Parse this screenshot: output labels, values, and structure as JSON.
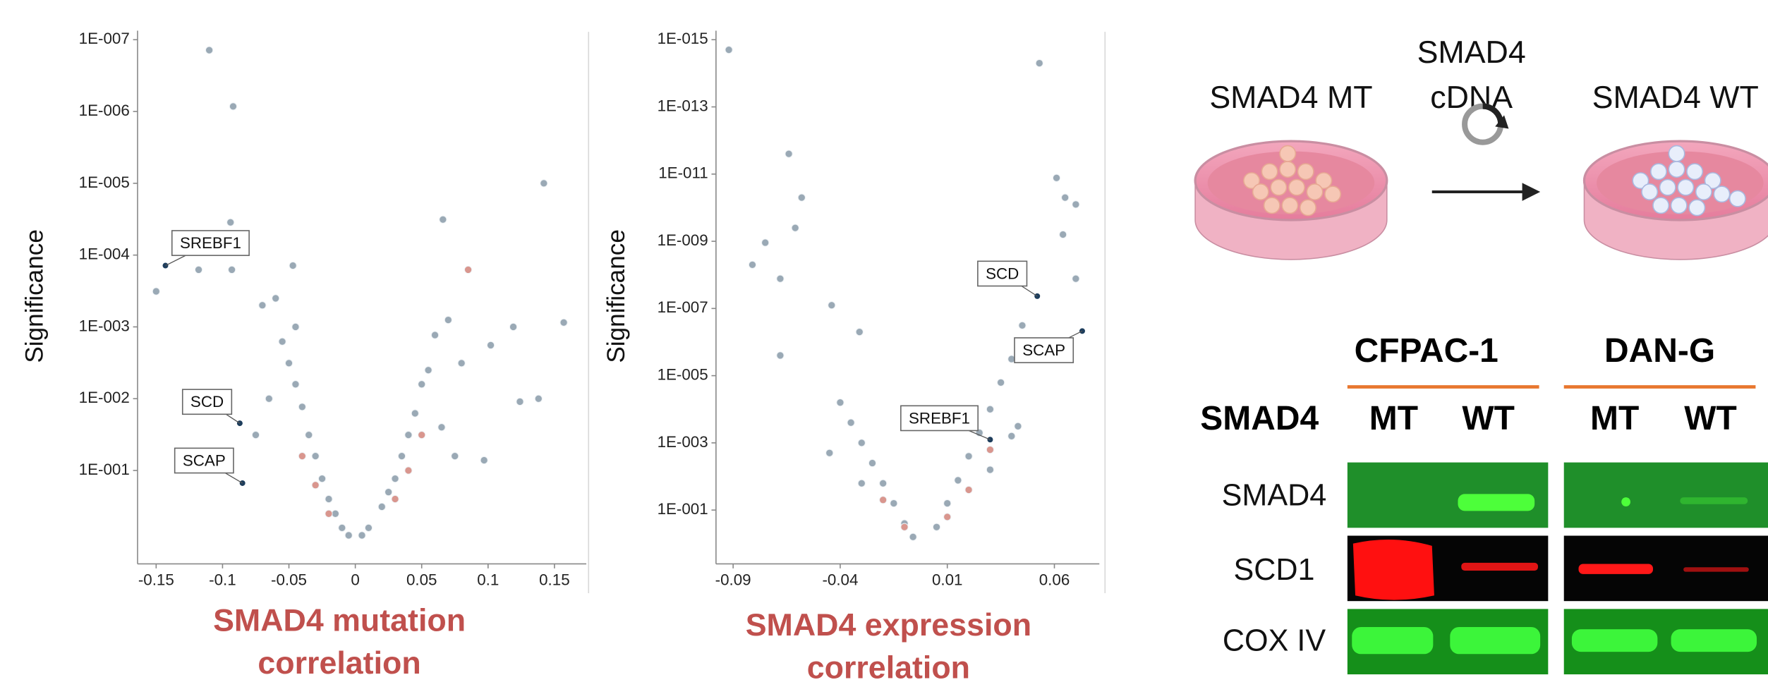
{
  "chart_data": [
    {
      "type": "scatter",
      "ylabel": "Significance",
      "xlabel": [
        "SMAD4 mutation",
        "correlation"
      ],
      "log_y": true,
      "xlim": [
        -0.164,
        0.174
      ],
      "ylim": [
        2,
        1e-07
      ],
      "xticks": [
        -0.15,
        -0.1,
        -0.05,
        0,
        0.05,
        0.1,
        0.15
      ],
      "yticks": [
        {
          "value": 1e-07,
          "label": "1E-007"
        },
        {
          "value": 1e-06,
          "label": "1E-006"
        },
        {
          "value": 1e-05,
          "label": "1E-005"
        },
        {
          "value": 0.0001,
          "label": "1E-004"
        },
        {
          "value": 0.001,
          "label": "1E-003"
        },
        {
          "value": 0.01,
          "label": "1E-002"
        },
        {
          "value": 0.1,
          "label": "1E-001"
        }
      ],
      "series": [
        {
          "color": "#9aa9b5",
          "x": [
            -0.11,
            -0.092,
            0.142,
            0.066,
            -0.094,
            -0.15,
            -0.118,
            -0.093,
            -0.047,
            0.102,
            0.119,
            0.157,
            0.138,
            0.124,
            0.097,
            -0.07,
            -0.06,
            -0.055,
            -0.05,
            -0.045,
            -0.04,
            -0.035,
            -0.03,
            -0.025,
            -0.02,
            -0.015,
            -0.01,
            -0.005,
            -0.065,
            -0.075,
            -0.045,
            0.07,
            0.06,
            0.055,
            0.05,
            0.045,
            0.04,
            0.035,
            0.03,
            0.025,
            0.02,
            0.01,
            0.005,
            0.065,
            0.075,
            0.08
          ],
          "values": [
            1.4e-07,
            8.5e-07,
            1e-05,
            3.2e-05,
            3.5e-05,
            0.00032,
            0.00016,
            0.00016,
            0.00014,
            0.0018,
            0.001,
            0.00087,
            0.01,
            0.011,
            0.072,
            0.0005,
            0.0004,
            0.0016,
            0.0032,
            0.0063,
            0.013,
            0.032,
            0.063,
            0.13,
            0.25,
            0.4,
            0.63,
            0.8,
            0.01,
            0.032,
            0.001,
            0.0008,
            0.0013,
            0.004,
            0.0063,
            0.016,
            0.032,
            0.063,
            0.13,
            0.2,
            0.32,
            0.63,
            0.8,
            0.025,
            0.063,
            0.0032
          ]
        },
        {
          "color": "#d9968e",
          "x": [
            0.085,
            -0.04,
            -0.03,
            -0.02,
            0.03,
            0.04,
            0.05
          ],
          "values": [
            0.00016,
            0.063,
            0.16,
            0.4,
            0.25,
            0.1,
            0.032
          ]
        },
        {
          "color": "#1d3d5c",
          "x": [
            -0.143,
            -0.087,
            -0.085
          ],
          "values": [
            0.00014,
            0.022,
            0.15
          ],
          "labels": [
            "SREBF1",
            "SCD",
            "SCAP"
          ]
        }
      ]
    },
    {
      "type": "scatter",
      "ylabel": "Significance",
      "xlabel": [
        "SMAD4 expression",
        "correlation"
      ],
      "log_y": true,
      "xlim": [
        -0.098,
        0.081
      ],
      "ylim": [
        4,
        1e-15
      ],
      "xticks": [
        -0.09,
        -0.04,
        0.01,
        0.06
      ],
      "yticks": [
        {
          "value": 1e-15,
          "label": "1E-015"
        },
        {
          "value": 1e-13,
          "label": "1E-013"
        },
        {
          "value": 1e-11,
          "label": "1E-011"
        },
        {
          "value": 1e-09,
          "label": "1E-009"
        },
        {
          "value": 1e-07,
          "label": "1E-007"
        },
        {
          "value": 1e-05,
          "label": "1E-005"
        },
        {
          "value": 0.001,
          "label": "1E-003"
        },
        {
          "value": 0.1,
          "label": "1E-001"
        }
      ],
      "series": [
        {
          "color": "#9aa9b5",
          "x": [
            -0.092,
            0.053,
            -0.064,
            -0.058,
            -0.061,
            -0.075,
            -0.081,
            -0.068,
            -0.044,
            0.061,
            0.065,
            0.07,
            0.064,
            0.07,
            -0.031,
            -0.068,
            0.043,
            -0.04,
            -0.035,
            -0.03,
            -0.025,
            -0.02,
            -0.015,
            -0.01,
            -0.006,
            -0.03,
            -0.045,
            0.005,
            0.01,
            0.015,
            0.02,
            0.025,
            0.03,
            0.035,
            0.04,
            0.045,
            0.03,
            0.04
          ],
          "values": [
            2e-15,
            5e-15,
            2.5e-12,
            5e-11,
            4e-10,
            1.1e-09,
            5e-09,
            1.3e-08,
            8e-08,
            1.3e-11,
            5e-11,
            8e-11,
            6.3e-10,
            1.3e-08,
            5e-07,
            2.5e-06,
            0.00032,
            6.3e-05,
            0.00025,
            0.001,
            0.004,
            0.016,
            0.063,
            0.25,
            0.63,
            0.016,
            0.002,
            0.32,
            0.063,
            0.013,
            0.0025,
            0.0005,
            0.0001,
            1.6e-05,
            3.2e-06,
            3.2e-07,
            0.0063,
            0.00063
          ]
        },
        {
          "color": "#d9968e",
          "x": [
            -0.02,
            -0.01,
            0.01,
            0.02,
            0.03
          ],
          "values": [
            0.05,
            0.32,
            0.16,
            0.025,
            0.0016
          ]
        },
        {
          "color": "#1d3d5c",
          "x": [
            0.052,
            0.073,
            0.03
          ],
          "values": [
            4.3e-08,
            4.7e-07,
            0.0008
          ],
          "labels": [
            "SCD",
            "SCAP",
            "SREBF1"
          ]
        }
      ]
    }
  ],
  "diagram": {
    "before": "SMAD4 MT",
    "treatment": [
      "SMAD4",
      "cDNA"
    ],
    "after": "SMAD4 WT"
  },
  "blot": {
    "row_header": "SMAD4",
    "cell_lines": [
      {
        "name": "CFPAC-1",
        "lanes": [
          "MT",
          "WT"
        ]
      },
      {
        "name": "DAN-G",
        "lanes": [
          "MT",
          "WT"
        ]
      }
    ],
    "proteins": [
      "SMAD4",
      "SCD1",
      "COX IV"
    ]
  }
}
